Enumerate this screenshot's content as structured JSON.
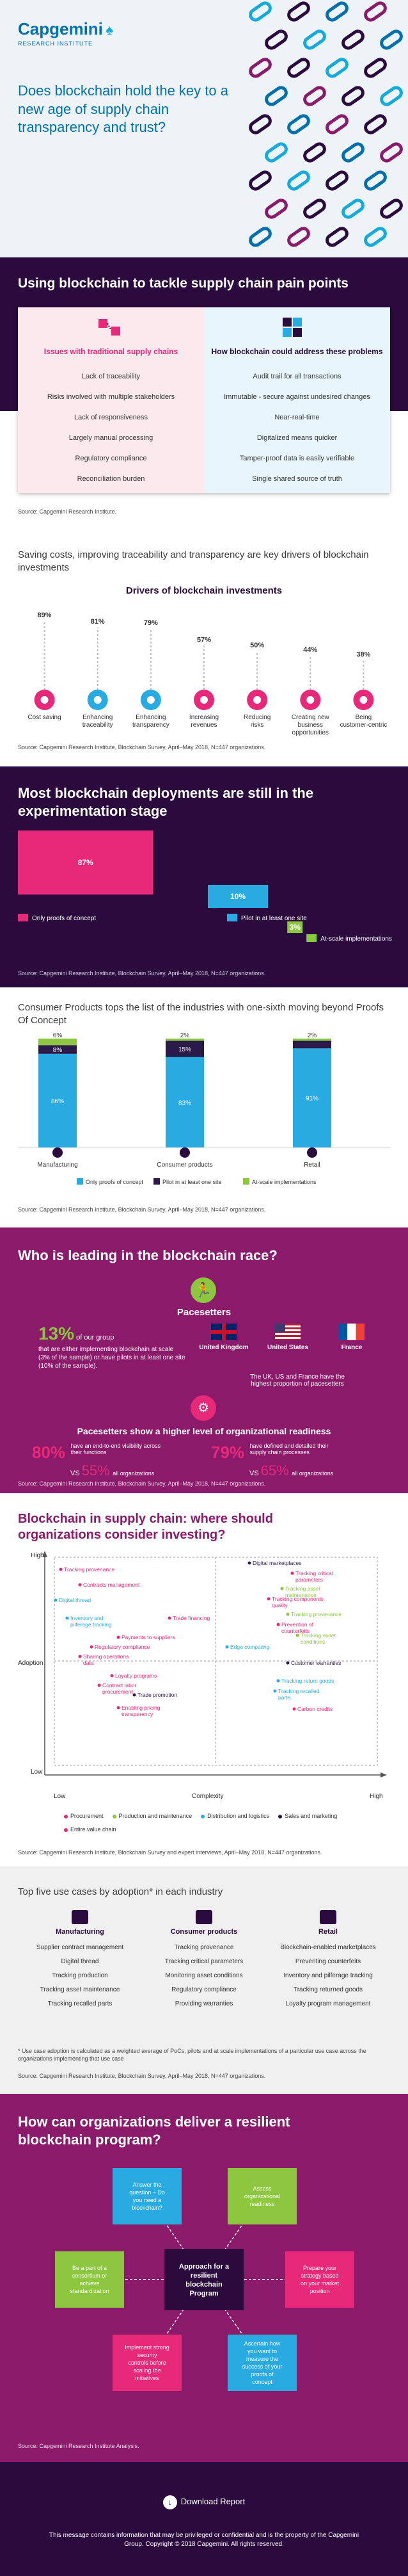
{
  "header": {
    "brand": "Capgemini",
    "sub": "RESEARCH INSTITUTE",
    "headline": "Does blockchain hold the key to a new age of supply chain transparency and trust?"
  },
  "pain_points": {
    "title": "Using blockchain to tackle supply chain pain points",
    "left_title": "Issues with traditional supply chains",
    "left_items": [
      "Lack of traceability",
      "Risks involved with multiple stakeholders",
      "Lack of responsiveness",
      "Largely manual processing",
      "Regulatory compliance",
      "Reconciliation burden"
    ],
    "right_title": "How blockchain could address these problems",
    "right_items": [
      "Audit trail for all transactions",
      "Immutable - secure against undesired changes",
      "Near-real-time",
      "Digitalized means quicker",
      "Tamper-proof data is easily verifiable",
      "Single shared source of truth"
    ],
    "source": "Source: Capgemini Research Institute."
  },
  "drivers": {
    "intro": "Saving costs, improving traceability and transparency are key drivers of blockchain investments",
    "title": "Drivers of blockchain investments",
    "source": "Source: Capgemini Research Institute, Blockchain Survey, April–May 2018, N=447 organizations."
  },
  "chart_data": [
    {
      "type": "bar",
      "title": "Drivers of blockchain investments",
      "categories": [
        "Cost saving",
        "Enhancing traceability",
        "Enhancing transparency",
        "Increasing revenues",
        "Reducing risks",
        "Creating new business opportunities",
        "Being customer-centric"
      ],
      "values": [
        89,
        81,
        79,
        57,
        50,
        44,
        38
      ],
      "value_labels": [
        "89%",
        "81%",
        "79%",
        "57%",
        "50%",
        "44%",
        "38%"
      ]
    },
    {
      "type": "bar",
      "title": "Most blockchain deployments are still in the experimentation stage",
      "categories": [
        "Only proofs of concept",
        "Pilot in at least one site",
        "At-scale implementations"
      ],
      "values": [
        87,
        10,
        3
      ],
      "value_labels": [
        "87%",
        "10%",
        "3%"
      ]
    },
    {
      "type": "bar",
      "title": "Consumer Products tops the list of the industries with one-sixth moving beyond Proofs Of Concept",
      "categories": [
        "Manufacturing",
        "Consumer products",
        "Retail"
      ],
      "series": [
        {
          "name": "Only proofs of concept",
          "values": [
            86,
            83,
            91
          ],
          "labels": [
            "86%",
            "83%",
            "91%"
          ],
          "color": "#29abe2"
        },
        {
          "name": "Pilot in at least one site",
          "values": [
            8,
            15,
            7
          ],
          "labels": [
            "8%",
            "15%",
            "7%"
          ],
          "color": "#2a1a4a"
        },
        {
          "name": "At-scale implementations",
          "values": [
            6,
            2,
            2
          ],
          "labels": [
            "6%",
            "2%",
            "2%"
          ],
          "color": "#8dc63f"
        }
      ],
      "ylim": [
        0,
        100
      ]
    }
  ],
  "deployment": {
    "title": "Most blockchain deployments are still in the experimentation stage",
    "source": "Source: Capgemini Research Institute, Blockchain Survey, April–May 2018, N=447 organizations."
  },
  "industries": {
    "title": "Consumer Products tops the list of the industries with one-sixth moving beyond Proofs Of Concept",
    "source": "Source: Capgemini Research Institute, Blockchain Survey, April–May 2018, N=447 organizations."
  },
  "race": {
    "title": "Who is leading in the blockchain race?",
    "pacesetters": "Pacesetters",
    "pct": "13%",
    "pct_rest": " of our group",
    "pct_desc": "that are either implementing blockchain at scale (3% of the sample) or have pilots in at least one site (10% of the sample).",
    "countries": [
      "United Kingdom",
      "United States",
      "France"
    ],
    "country_note": "The UK, US and France have the highest proportion of pacesetters",
    "org_title": "Pacesetters show a higher level of organizational readiness",
    "s1_pct": "80%",
    "s1_desc": "have an end-to-end visibility across their functions",
    "s1_vs": "VS",
    "s1_cmp": "55%",
    "s1_all": "all organizations",
    "s2_pct": "79%",
    "s2_desc": "have defined and detailed their supply chain processes",
    "s2_vs": "VS",
    "s2_cmp": "65%",
    "s2_all": "all organizations",
    "source": "Source: Capgemini Research Institute, Blockchain Survey, April–May 2018, N=447 organizations."
  },
  "matrix": {
    "title": "Blockchain in supply chain: where should organizations consider investing?",
    "y_label": "Adoption",
    "y_high": "High",
    "y_low": "Low",
    "x_label": "Complexity",
    "x_low": "Low",
    "x_high": "High",
    "items": [
      {
        "t": "Tracking provenance",
        "c": "#e8297a"
      },
      {
        "t": "Contracts management",
        "c": "#e8297a"
      },
      {
        "t": "Digital thread",
        "c": "#29abe2"
      },
      {
        "t": "Inventory and pilferage tracking",
        "c": "#29abe2"
      },
      {
        "t": "Trade financing",
        "c": "#e8297a"
      },
      {
        "t": "Payments to suppliers",
        "c": "#e8297a"
      },
      {
        "t": "Regulatory compliance",
        "c": "#e8297a"
      },
      {
        "t": "Sharing operations data",
        "c": "#e8297a"
      },
      {
        "t": "Loyalty programs",
        "c": "#e8297a"
      },
      {
        "t": "Contract labor procurement",
        "c": "#e8297a"
      },
      {
        "t": "Trade promotion",
        "c": "#2a1a4a"
      },
      {
        "t": "Enabling pricing transparency",
        "c": "#e8297a"
      },
      {
        "t": "Digital marketplaces",
        "c": "#2a1a4a"
      },
      {
        "t": "Tracking critical parameters",
        "c": "#e8297a"
      },
      {
        "t": "Tracking asset maintenance",
        "c": "#8dc63f"
      },
      {
        "t": "Tracking components quality",
        "c": "#e8297a"
      },
      {
        "t": "Tracking provenance",
        "c": "#8dc63f"
      },
      {
        "t": "Prevention of counterfeits",
        "c": "#e8297a"
      },
      {
        "t": "Tracking asset conditions",
        "c": "#8dc63f"
      },
      {
        "t": "Edge computing",
        "c": "#29abe2"
      },
      {
        "t": "Customer warranties",
        "c": "#2a1a4a"
      },
      {
        "t": "Tracking return goods",
        "c": "#29abe2"
      },
      {
        "t": "Tracking recalled parts",
        "c": "#29abe2"
      },
      {
        "t": "Carbon credits",
        "c": "#e8297a"
      }
    ],
    "legend": [
      {
        "t": "Procurement",
        "c": "#e8297a"
      },
      {
        "t": "Production and maintenance",
        "c": "#8dc63f"
      },
      {
        "t": "Distribution and logistics",
        "c": "#29abe2"
      },
      {
        "t": "Sales and marketing",
        "c": "#2a1a4a"
      },
      {
        "t": "Entire value chain",
        "c": "#e8297a"
      }
    ],
    "source": "Source: Capgemini Research Institute, Blockchain Survey and expert interviews, April–May 2018, N=447 organizations."
  },
  "usecases": {
    "title": "Top five use cases by adoption* in each industry",
    "cols": [
      {
        "name": "Manufacturing",
        "items": [
          "Supplier contract management",
          "Digital thread",
          "Tracking production",
          "Tracking asset maintenance",
          "Tracking recalled parts"
        ]
      },
      {
        "name": "Consumer products",
        "items": [
          "Tracking provenance",
          "Tracking critical parameters",
          "Monitoring asset conditions",
          "Regulatory compliance",
          "Providing warranties"
        ]
      },
      {
        "name": "Retail",
        "items": [
          "Blockchain-enabled marketplaces",
          "Preventing counterfeits",
          "Inventory and pilferage tracking",
          "Tracking returned goods",
          "Loyalty program management"
        ]
      }
    ],
    "note": "* Use case adoption is calculated as a weighted average of PoCs, pilots and at scale implementations of a particular use case across the organizations implementing that use case",
    "source": "Source: Capgemini Research Institute, Blockchain Survey, April–May 2018, N=447 organizations."
  },
  "program": {
    "title": "How can organizations deliver a resilient blockchain program?",
    "center": "Approach for a resilient blockchain Program",
    "nodes": [
      "Answer the question – Do you need a blockchain?",
      "Assess organizational readiness",
      "Prepare your strategy based on your market position",
      "Ascertain how you want to measure the success of your proofs of concept",
      "Implement strong security controls before scaling the initiatives",
      "Be a part of a consortium or achieve standardization"
    ],
    "source": "Source: Capgemini Research Institute Analysis."
  },
  "footer": {
    "download": "Download Report",
    "legal": "This message contains information that may be privileged or confidential and is the property of the Capgemini Group. Copyright © 2018 Capgemini. All rights reserved."
  }
}
